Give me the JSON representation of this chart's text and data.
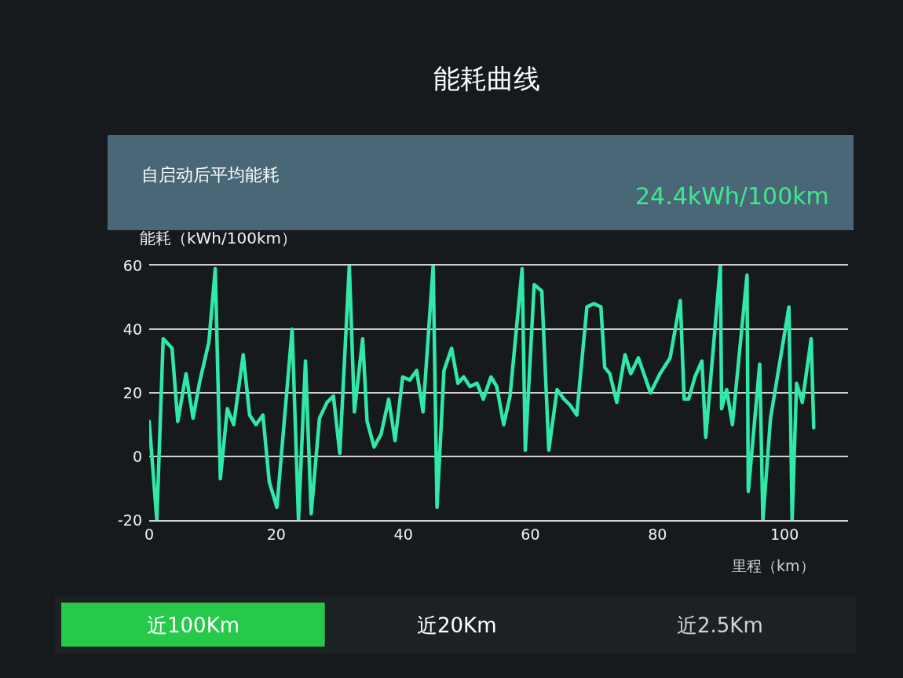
{
  "chart_data": {
    "type": "line",
    "title": "能耗曲线",
    "subtitle": "自启动后平均能耗",
    "xlabel": "里程（km）",
    "ylabel": "能耗（kWh/100km）",
    "annotations": [
      "24.4kWh/100km",
      "近100Km",
      "近20Km",
      "近2.5Km"
    ],
    "x": [
      0,
      1.2,
      2.2,
      3.6,
      4.5,
      5.8,
      6.9,
      7.9,
      9.4,
      10.4,
      11.2,
      12.3,
      13.3,
      14.8,
      15.8,
      16.8,
      17.9,
      18.9,
      20.1,
      22.5,
      23.5,
      24.6,
      25.5,
      26.8,
      28.0,
      29.0,
      30.0,
      31.5,
      32.3,
      33.6,
      34.3,
      35.4,
      36.5,
      37.7,
      38.7,
      39.9,
      41.0,
      42.1,
      43.1,
      44.7,
      45.3,
      46.4,
      47.6,
      48.6,
      49.5,
      50.5,
      51.6,
      52.6,
      53.8,
      54.7,
      55.8,
      56.8,
      58.7,
      59.2,
      60.6,
      61.8,
      62.9,
      64.2,
      65.3,
      66.3,
      67.3,
      68.9,
      70.0,
      71.1,
      71.7,
      72.5,
      73.6,
      74.9,
      75.8,
      77.0,
      78.9,
      80.4,
      82.0,
      83.6,
      84.2,
      84.9,
      85.9,
      87.0,
      87.6,
      89.9,
      90.1,
      90.9,
      91.8,
      94.1,
      94.3,
      96.1,
      96.6,
      97.8,
      100.7,
      101.2,
      101.9,
      102.8,
      104.2,
      104.6
    ],
    "series": [
      {
        "color": "#30e8a8",
        "values": [
          11,
          -20,
          37,
          34,
          11,
          26,
          12,
          23,
          36,
          59,
          -7,
          15,
          10,
          32,
          13,
          10,
          13,
          -8,
          -16,
          40,
          -20,
          30,
          -18,
          12,
          17,
          19,
          1,
          60,
          14,
          37,
          11,
          3,
          7,
          18,
          5,
          25,
          24,
          27,
          14,
          60,
          -16,
          27,
          34,
          23,
          25,
          22,
          23,
          18,
          25,
          22,
          10,
          19,
          59,
          2,
          54,
          52,
          2,
          21,
          18,
          16,
          13,
          47,
          48,
          47,
          28,
          26,
          17,
          32,
          26,
          31,
          20,
          26,
          31,
          49,
          18,
          18,
          25,
          30,
          6,
          60,
          15,
          21,
          10,
          57,
          -11,
          29,
          -20,
          12,
          47,
          -20,
          23,
          17,
          37,
          9
        ]
      }
    ],
    "xlim": [
      0,
      110
    ],
    "xticks": [
      0,
      20,
      40,
      60,
      80,
      100
    ],
    "ylim": [
      -20,
      60
    ],
    "yticks": [
      -20,
      0,
      20,
      40,
      60
    ],
    "grid": "y",
    "line_style": "solid"
  }
}
